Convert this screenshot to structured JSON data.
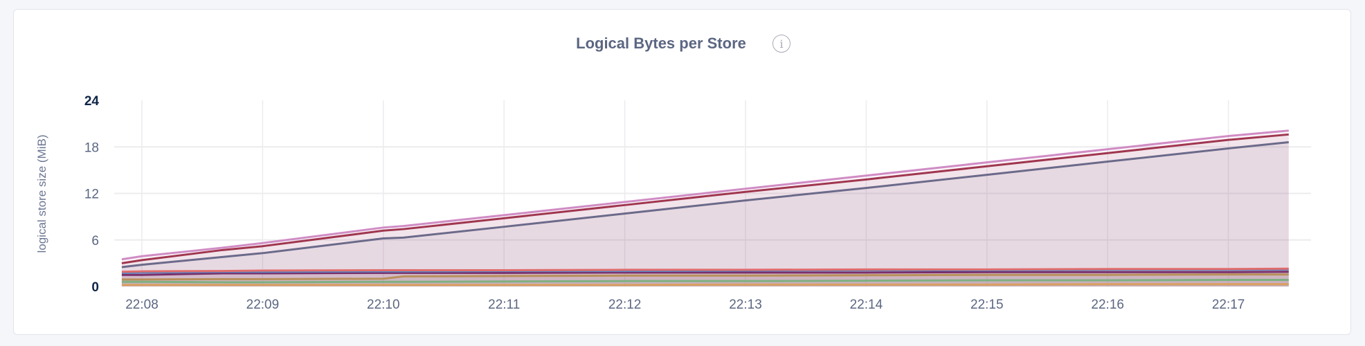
{
  "chart_data": {
    "type": "area",
    "stacked": true,
    "title": "Logical Bytes per Store",
    "title_icon": "info-icon",
    "xlabel": "",
    "ylabel": "logical store size (MiB)",
    "ylim": [
      0,
      24
    ],
    "yticks": [
      "0",
      "6",
      "12",
      "18",
      "24"
    ],
    "xticks": [
      "22:08",
      "22:09",
      "22:10",
      "22:11",
      "22:12",
      "22:13",
      "22:14",
      "22:15",
      "22:16",
      "22:17"
    ],
    "grid": true,
    "legend": "none",
    "x": [
      "22:07:50",
      "22:08",
      "22:08:40",
      "22:09",
      "22:10",
      "22:10:10",
      "22:11",
      "22:12",
      "22:13",
      "22:14",
      "22:15",
      "22:16",
      "22:17",
      "22:17:30"
    ],
    "series": [
      {
        "color": "#d9a060",
        "values": [
          0.2,
          0.2,
          0.2,
          0.2,
          0.2,
          0.2,
          0.2,
          0.2,
          0.25,
          0.25,
          0.25,
          0.3,
          0.3,
          0.3
        ]
      },
      {
        "color": "#7fb080",
        "values": [
          0.4,
          0.4,
          0.35,
          0.35,
          0.4,
          0.4,
          0.45,
          0.5,
          0.45,
          0.5,
          0.55,
          0.5,
          0.55,
          0.55
        ]
      },
      {
        "color": "#b8905a",
        "values": [
          0.3,
          0.3,
          0.4,
          0.4,
          0.4,
          0.7,
          0.7,
          0.7,
          0.7,
          0.7,
          0.7,
          0.7,
          0.7,
          0.7
        ]
      },
      {
        "color": "#7a2f6a",
        "values": [
          0.6,
          0.6,
          0.75,
          0.75,
          0.75,
          0.45,
          0.4,
          0.4,
          0.4,
          0.35,
          0.35,
          0.35,
          0.3,
          0.35
        ]
      },
      {
        "color": "#5b84c0",
        "values": [
          0.25,
          0.3,
          0.2,
          0.2,
          0.2,
          0.2,
          0.25,
          0.2,
          0.25,
          0.3,
          0.25,
          0.3,
          0.3,
          0.3
        ]
      },
      {
        "color": "#e06c6c",
        "values": [
          0.15,
          0.15,
          0.1,
          0.15,
          0.15,
          0.15,
          0.1,
          0.15,
          0.1,
          0.1,
          0.1,
          0.1,
          0.1,
          0.1
        ]
      },
      {
        "color": "#6b6a8a",
        "values": [
          0.6,
          0.85,
          1.8,
          2.25,
          4.1,
          4.2,
          5.6,
          7.25,
          8.95,
          10.5,
          12.2,
          13.85,
          15.55,
          16.3
        ]
      },
      {
        "color": "#a0364f",
        "values": [
          0.5,
          0.6,
          0.9,
          0.9,
          1.0,
          1.1,
          1.1,
          1.1,
          1.1,
          1.1,
          1.1,
          1.1,
          1.1,
          1.0
        ]
      },
      {
        "color": "#d08cc4",
        "values": [
          0.5,
          0.5,
          0.3,
          0.4,
          0.4,
          0.4,
          0.4,
          0.4,
          0.4,
          0.5,
          0.5,
          0.5,
          0.5,
          0.5
        ]
      }
    ]
  }
}
